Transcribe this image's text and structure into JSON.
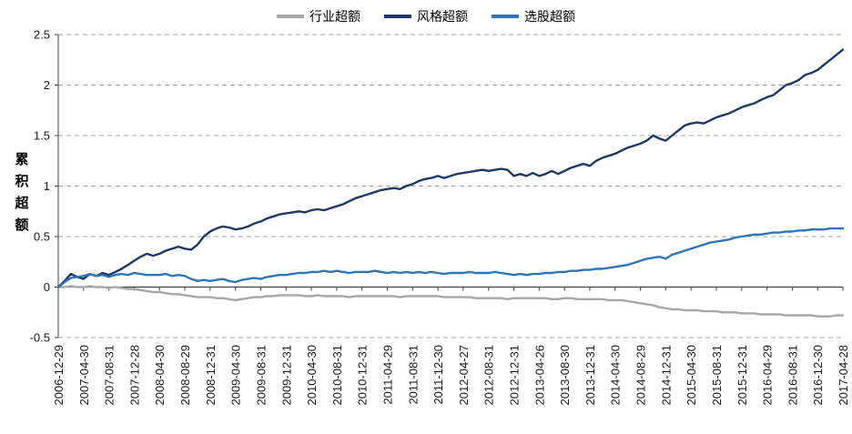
{
  "chart_data": {
    "type": "line",
    "title": "",
    "ylabel": "累积超额",
    "ylabel_chars": [
      "累",
      "积",
      "超",
      "额"
    ],
    "ylim": [
      -0.5,
      2.5
    ],
    "yticks": [
      2.5,
      2,
      1.5,
      1,
      0.5,
      0,
      -0.5
    ],
    "ytick_labels": [
      "2.5",
      "2",
      "1.5",
      "1",
      "0.5",
      "0",
      "-0.5"
    ],
    "grid": "dashed-horizontal",
    "legend_position": "top",
    "x_label_rotation": -90,
    "x_tick_every": 4,
    "x_tick_labels": [
      "2006-12-29",
      "2007-04-30",
      "2007-08-31",
      "2007-12-28",
      "2008-04-30",
      "2008-08-29",
      "2008-12-31",
      "2009-04-30",
      "2009-08-31",
      "2009-12-31",
      "2010-04-30",
      "2010-08-31",
      "2010-12-31",
      "2011-04-29",
      "2011-08-31",
      "2011-12-30",
      "2012-04-27",
      "2012-08-31",
      "2012-12-31",
      "2013-04-26",
      "2013-08-30",
      "2013-12-31",
      "2014-04-30",
      "2014-08-29",
      "2014-12-31",
      "2015-04-30",
      "2015-08-31",
      "2015-12-31",
      "2016-04-29",
      "2016-08-31",
      "2016-12-30",
      "2017-04-28"
    ],
    "colors": {
      "grid": "#A6A6A6",
      "axis": "#404040",
      "text": "#1A1A1A"
    },
    "series": [
      {
        "id": "industry",
        "name": "行业超额",
        "color": "#A6A6A6",
        "values": [
          0.0,
          0.0,
          0.01,
          0.0,
          0.0,
          0.01,
          0.0,
          0.0,
          -0.01,
          0.0,
          -0.01,
          -0.02,
          -0.02,
          -0.03,
          -0.04,
          -0.05,
          -0.05,
          -0.06,
          -0.07,
          -0.07,
          -0.08,
          -0.09,
          -0.1,
          -0.1,
          -0.1,
          -0.11,
          -0.11,
          -0.12,
          -0.13,
          -0.12,
          -0.11,
          -0.1,
          -0.1,
          -0.09,
          -0.09,
          -0.08,
          -0.08,
          -0.08,
          -0.08,
          -0.09,
          -0.09,
          -0.08,
          -0.09,
          -0.09,
          -0.09,
          -0.09,
          -0.1,
          -0.09,
          -0.09,
          -0.09,
          -0.09,
          -0.09,
          -0.09,
          -0.09,
          -0.1,
          -0.09,
          -0.09,
          -0.09,
          -0.09,
          -0.09,
          -0.09,
          -0.1,
          -0.1,
          -0.1,
          -0.1,
          -0.1,
          -0.11,
          -0.11,
          -0.11,
          -0.11,
          -0.11,
          -0.12,
          -0.11,
          -0.11,
          -0.11,
          -0.11,
          -0.11,
          -0.11,
          -0.12,
          -0.12,
          -0.11,
          -0.11,
          -0.12,
          -0.12,
          -0.12,
          -0.12,
          -0.12,
          -0.13,
          -0.13,
          -0.13,
          -0.14,
          -0.15,
          -0.16,
          -0.17,
          -0.18,
          -0.2,
          -0.21,
          -0.22,
          -0.22,
          -0.23,
          -0.23,
          -0.23,
          -0.24,
          -0.24,
          -0.24,
          -0.25,
          -0.25,
          -0.25,
          -0.26,
          -0.26,
          -0.26,
          -0.27,
          -0.27,
          -0.27,
          -0.27,
          -0.28,
          -0.28,
          -0.28,
          -0.28,
          -0.28,
          -0.29,
          -0.29,
          -0.29,
          -0.28,
          -0.28
        ]
      },
      {
        "id": "style",
        "name": "风格超额",
        "color": "#1F3864",
        "values": [
          0.0,
          0.06,
          0.13,
          0.1,
          0.08,
          0.13,
          0.11,
          0.14,
          0.12,
          0.15,
          0.18,
          0.22,
          0.26,
          0.3,
          0.33,
          0.31,
          0.33,
          0.36,
          0.38,
          0.4,
          0.38,
          0.37,
          0.42,
          0.5,
          0.55,
          0.58,
          0.6,
          0.59,
          0.57,
          0.58,
          0.6,
          0.63,
          0.65,
          0.68,
          0.7,
          0.72,
          0.73,
          0.74,
          0.75,
          0.74,
          0.76,
          0.77,
          0.76,
          0.78,
          0.8,
          0.82,
          0.85,
          0.88,
          0.9,
          0.92,
          0.94,
          0.96,
          0.97,
          0.98,
          0.97,
          1.0,
          1.02,
          1.05,
          1.07,
          1.08,
          1.1,
          1.08,
          1.1,
          1.12,
          1.13,
          1.14,
          1.15,
          1.16,
          1.15,
          1.16,
          1.17,
          1.16,
          1.1,
          1.12,
          1.1,
          1.13,
          1.1,
          1.12,
          1.15,
          1.12,
          1.15,
          1.18,
          1.2,
          1.22,
          1.2,
          1.25,
          1.28,
          1.3,
          1.32,
          1.35,
          1.38,
          1.4,
          1.42,
          1.45,
          1.5,
          1.47,
          1.45,
          1.5,
          1.55,
          1.6,
          1.62,
          1.63,
          1.62,
          1.65,
          1.68,
          1.7,
          1.72,
          1.75,
          1.78,
          1.8,
          1.82,
          1.85,
          1.88,
          1.9,
          1.95,
          2.0,
          2.02,
          2.05,
          2.1,
          2.12,
          2.15,
          2.2,
          2.25,
          2.3,
          2.35
        ]
      },
      {
        "id": "stock",
        "name": "选股超额",
        "color": "#2E75B6",
        "values": [
          0.0,
          0.05,
          0.09,
          0.1,
          0.11,
          0.13,
          0.11,
          0.12,
          0.1,
          0.12,
          0.13,
          0.12,
          0.14,
          0.13,
          0.12,
          0.12,
          0.12,
          0.13,
          0.11,
          0.12,
          0.11,
          0.08,
          0.06,
          0.07,
          0.06,
          0.07,
          0.08,
          0.06,
          0.05,
          0.07,
          0.08,
          0.09,
          0.08,
          0.1,
          0.11,
          0.12,
          0.12,
          0.13,
          0.14,
          0.14,
          0.15,
          0.15,
          0.16,
          0.15,
          0.16,
          0.15,
          0.14,
          0.15,
          0.15,
          0.15,
          0.16,
          0.15,
          0.14,
          0.15,
          0.14,
          0.15,
          0.14,
          0.15,
          0.14,
          0.15,
          0.14,
          0.13,
          0.14,
          0.14,
          0.14,
          0.15,
          0.14,
          0.14,
          0.14,
          0.15,
          0.14,
          0.13,
          0.12,
          0.13,
          0.12,
          0.13,
          0.13,
          0.14,
          0.14,
          0.15,
          0.15,
          0.16,
          0.16,
          0.17,
          0.17,
          0.18,
          0.18,
          0.19,
          0.2,
          0.21,
          0.22,
          0.24,
          0.26,
          0.28,
          0.29,
          0.3,
          0.28,
          0.32,
          0.34,
          0.36,
          0.38,
          0.4,
          0.42,
          0.44,
          0.45,
          0.46,
          0.47,
          0.49,
          0.5,
          0.51,
          0.52,
          0.52,
          0.53,
          0.54,
          0.54,
          0.55,
          0.55,
          0.56,
          0.56,
          0.57,
          0.57,
          0.57,
          0.58,
          0.58,
          0.58
        ]
      }
    ]
  }
}
